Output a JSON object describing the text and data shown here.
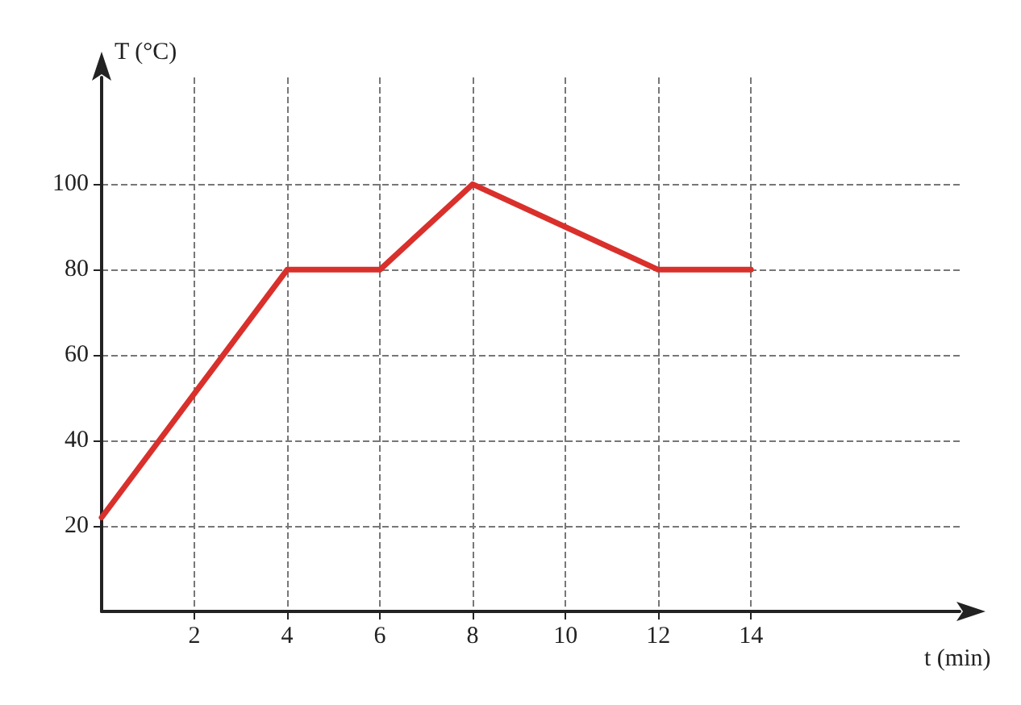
{
  "chart_data": {
    "type": "line",
    "xlabel": "t (min)",
    "ylabel": "T (°C)",
    "x": [
      0,
      4,
      6,
      8,
      12,
      14
    ],
    "series": [
      {
        "color": "#d9302c",
        "values": [
          22,
          80,
          80,
          100,
          80,
          80
        ]
      }
    ],
    "xlim": [
      0,
      18.5
    ],
    "ylim": [
      0,
      125
    ],
    "xticks": [
      2,
      4,
      6,
      8,
      10,
      12,
      14
    ],
    "yticks": [
      20,
      40,
      60,
      80,
      100
    ],
    "grid": true,
    "marker": "none",
    "line_style": "solid"
  }
}
